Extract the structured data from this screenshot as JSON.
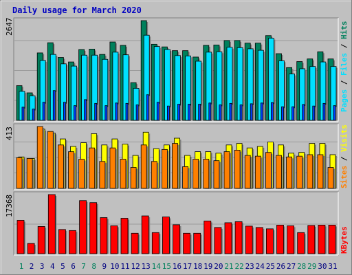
{
  "title": "Daily usage for March 2020",
  "colors": {
    "background": "#c0c0c0",
    "title": "#0000c0",
    "hits": "#00805c",
    "files": "#00e0ff",
    "pages": "#0040ff",
    "visits": "#ffff00",
    "sites": "#ff8000",
    "kbytes": "#ff0000",
    "weekend_day": "#00805c",
    "weekday": "#000080"
  },
  "chart_data": [
    {
      "type": "bar",
      "panel": "top",
      "max_label": "2647",
      "legend": [
        "Pages",
        "Files",
        "Hits"
      ],
      "ylim": [
        0,
        2647
      ],
      "categories": [
        "1",
        "2",
        "3",
        "4",
        "5",
        "6",
        "7",
        "8",
        "9",
        "10",
        "11",
        "12",
        "13",
        "14",
        "15",
        "16",
        "17",
        "18",
        "19",
        "20",
        "21",
        "22",
        "23",
        "24",
        "25",
        "26",
        "27",
        "28",
        "29",
        "30",
        "31"
      ],
      "series": [
        {
          "name": "Hits",
          "values": [
            920,
            730,
            1790,
            2060,
            1670,
            1550,
            1880,
            1890,
            1750,
            2080,
            1990,
            1000,
            2647,
            2020,
            1950,
            1850,
            1850,
            1680,
            1990,
            2000,
            2120,
            2120,
            2050,
            2050,
            2250,
            1770,
            1400,
            1560,
            1630,
            1820,
            1630
          ]
        },
        {
          "name": "Files",
          "values": [
            770,
            650,
            1590,
            1750,
            1500,
            1440,
            1730,
            1730,
            1620,
            1810,
            1740,
            850,
            2260,
            1960,
            1880,
            1720,
            1710,
            1570,
            1810,
            1820,
            1940,
            1930,
            1900,
            1860,
            2180,
            1580,
            1230,
            1370,
            1430,
            1550,
            1430
          ]
        },
        {
          "name": "Pages",
          "values": [
            350,
            300,
            480,
            790,
            480,
            390,
            550,
            450,
            390,
            460,
            450,
            410,
            680,
            480,
            380,
            430,
            430,
            430,
            460,
            410,
            450,
            410,
            440,
            460,
            470,
            360,
            360,
            420,
            380,
            450,
            390
          ]
        }
      ]
    },
    {
      "type": "bar",
      "panel": "middle",
      "max_label": "413",
      "legend": [
        "Sites",
        "Visits"
      ],
      "ylim": [
        0,
        413
      ],
      "categories": [
        "1",
        "2",
        "3",
        "4",
        "5",
        "6",
        "7",
        "8",
        "9",
        "10",
        "11",
        "12",
        "13",
        "14",
        "15",
        "16",
        "17",
        "18",
        "19",
        "20",
        "21",
        "22",
        "23",
        "24",
        "25",
        "26",
        "27",
        "28",
        "29",
        "30",
        "31"
      ],
      "series": [
        {
          "name": "Visits",
          "values": [
            210,
            200,
            395,
            370,
            330,
            280,
            305,
            365,
            290,
            330,
            295,
            220,
            375,
            265,
            290,
            335,
            220,
            245,
            245,
            235,
            290,
            300,
            270,
            280,
            310,
            290,
            235,
            240,
            300,
            300,
            225
          ]
        },
        {
          "name": "Sites",
          "values": [
            205,
            200,
            413,
            380,
            290,
            245,
            195,
            270,
            180,
            270,
            195,
            140,
            290,
            180,
            260,
            300,
            145,
            195,
            195,
            185,
            245,
            255,
            220,
            215,
            240,
            220,
            210,
            215,
            225,
            225,
            140
          ]
        }
      ]
    },
    {
      "type": "bar",
      "panel": "bottom",
      "max_label": "17368",
      "legend": [
        "KBytes"
      ],
      "ylim": [
        0,
        17368
      ],
      "categories": [
        "1",
        "2",
        "3",
        "4",
        "5",
        "6",
        "7",
        "8",
        "9",
        "10",
        "11",
        "12",
        "13",
        "14",
        "15",
        "16",
        "17",
        "18",
        "19",
        "20",
        "21",
        "22",
        "23",
        "24",
        "25",
        "26",
        "27",
        "28",
        "29",
        "30",
        "31"
      ],
      "series": [
        {
          "name": "KBytes",
          "values": [
            9800,
            3000,
            8000,
            17368,
            7100,
            6800,
            15600,
            15000,
            10600,
            8200,
            10400,
            6000,
            11100,
            6200,
            10800,
            8500,
            6000,
            6000,
            9600,
            7700,
            9100,
            9400,
            8100,
            7700,
            7300,
            8400,
            8200,
            6200,
            8300,
            8400,
            8400
          ]
        }
      ]
    }
  ],
  "x_labels": [
    "1",
    "2",
    "3",
    "4",
    "5",
    "6",
    "7",
    "8",
    "9",
    "10",
    "11",
    "12",
    "13",
    "14",
    "15",
    "16",
    "17",
    "18",
    "19",
    "20",
    "21",
    "22",
    "23",
    "24",
    "25",
    "26",
    "27",
    "28",
    "29",
    "30",
    "31"
  ],
  "weekend_days": [
    "1",
    "7",
    "8",
    "14",
    "15",
    "21",
    "22",
    "28",
    "29"
  ]
}
